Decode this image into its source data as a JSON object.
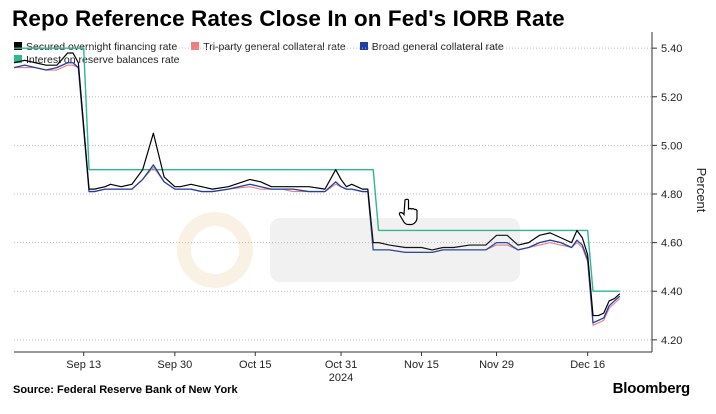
{
  "title": "Repo Reference Rates Close In on Fed's IORB Rate",
  "source": "Source: Federal Reserve Bank of New York",
  "brand": "Bloomberg",
  "colors": {
    "sofr": "#000000",
    "tgcr": "#f07c7c",
    "bgcr": "#1f3fa5",
    "iorb": "#2db890"
  },
  "chart_data": {
    "type": "line",
    "xlabel": "2024",
    "ylabel": "Percent",
    "ylim": [
      4.15,
      5.45
    ],
    "y_ticks": [
      "5.40",
      "5.20",
      "5.00",
      "4.80",
      "4.60",
      "4.40",
      "4.20"
    ],
    "x_ticks": [
      {
        "label": "Sep 13",
        "day": 13
      },
      {
        "label": "Sep 30",
        "day": 30
      },
      {
        "label": "Oct 15",
        "day": 45
      },
      {
        "label": "Oct 31",
        "day": 61
      },
      {
        "label": "Nov 15",
        "day": 76
      },
      {
        "label": "Nov 29",
        "day": 90
      },
      {
        "label": "Dec 16",
        "day": 107
      }
    ],
    "x_range": [
      0,
      119
    ],
    "legend_placement": "top-left",
    "grid": "horizontal",
    "series": [
      {
        "name": "Secured overnight financing rate",
        "key": "sofr",
        "x": [
          0,
          2,
          4,
          6,
          8,
          10,
          11,
          12,
          14,
          15,
          17,
          18,
          20,
          22,
          24,
          26,
          28,
          30,
          31,
          33,
          35,
          37,
          40,
          44,
          46,
          48,
          50,
          52,
          55,
          58,
          60,
          61,
          62,
          63,
          65,
          66,
          67,
          68,
          70,
          73,
          76,
          78,
          80,
          82,
          85,
          88,
          90,
          92,
          94,
          96,
          98,
          100,
          102,
          104,
          105,
          106,
          107,
          108,
          109,
          110,
          111,
          112,
          113
        ],
        "values": [
          5.34,
          5.35,
          5.34,
          5.33,
          5.33,
          5.38,
          5.38,
          5.34,
          4.82,
          4.82,
          4.83,
          4.84,
          4.83,
          4.84,
          4.9,
          5.05,
          4.87,
          4.83,
          4.83,
          4.84,
          4.83,
          4.82,
          4.83,
          4.86,
          4.85,
          4.83,
          4.83,
          4.83,
          4.83,
          4.82,
          4.9,
          4.86,
          4.83,
          4.84,
          4.82,
          4.82,
          4.6,
          4.6,
          4.59,
          4.58,
          4.58,
          4.57,
          4.58,
          4.58,
          4.59,
          4.59,
          4.63,
          4.63,
          4.59,
          4.6,
          4.63,
          4.64,
          4.62,
          4.6,
          4.65,
          4.62,
          4.55,
          4.3,
          4.3,
          4.31,
          4.36,
          4.37,
          4.39
        ]
      },
      {
        "name": "Tri-party general collateral rate",
        "key": "tgcr",
        "x": [
          0,
          2,
          4,
          6,
          8,
          10,
          11,
          12,
          14,
          15,
          17,
          18,
          20,
          22,
          24,
          26,
          28,
          30,
          31,
          33,
          35,
          37,
          40,
          44,
          46,
          48,
          50,
          52,
          55,
          58,
          60,
          61,
          62,
          63,
          65,
          66,
          67,
          68,
          70,
          73,
          76,
          78,
          80,
          82,
          85,
          88,
          90,
          92,
          94,
          96,
          98,
          100,
          102,
          104,
          105,
          106,
          107,
          108,
          109,
          110,
          111,
          112,
          113
        ],
        "values": [
          5.32,
          5.32,
          5.32,
          5.31,
          5.31,
          5.33,
          5.33,
          5.32,
          4.81,
          4.81,
          4.82,
          4.82,
          4.82,
          4.82,
          4.86,
          4.91,
          4.85,
          4.82,
          4.82,
          4.82,
          4.81,
          4.81,
          4.82,
          4.83,
          4.82,
          4.82,
          4.82,
          4.81,
          4.81,
          4.81,
          4.84,
          4.83,
          4.82,
          4.82,
          4.81,
          4.81,
          4.57,
          4.57,
          4.57,
          4.56,
          4.56,
          4.56,
          4.57,
          4.57,
          4.57,
          4.57,
          4.59,
          4.59,
          4.57,
          4.58,
          4.59,
          4.6,
          4.59,
          4.58,
          4.6,
          4.58,
          4.52,
          4.26,
          4.27,
          4.28,
          4.33,
          4.35,
          4.37
        ]
      },
      {
        "name": "Broad general collateral rate",
        "key": "bgcr",
        "x": [
          0,
          2,
          4,
          6,
          8,
          10,
          11,
          12,
          14,
          15,
          17,
          18,
          20,
          22,
          24,
          26,
          28,
          30,
          31,
          33,
          35,
          37,
          40,
          44,
          46,
          48,
          50,
          52,
          55,
          58,
          60,
          61,
          62,
          63,
          65,
          66,
          67,
          68,
          70,
          73,
          76,
          78,
          80,
          82,
          85,
          88,
          90,
          92,
          94,
          96,
          98,
          100,
          102,
          104,
          105,
          106,
          107,
          108,
          109,
          110,
          111,
          112,
          113
        ],
        "values": [
          5.32,
          5.33,
          5.32,
          5.31,
          5.32,
          5.34,
          5.34,
          5.32,
          4.81,
          4.81,
          4.82,
          4.82,
          4.82,
          4.82,
          4.86,
          4.92,
          4.85,
          4.82,
          4.82,
          4.82,
          4.81,
          4.81,
          4.82,
          4.84,
          4.83,
          4.82,
          4.82,
          4.82,
          4.81,
          4.81,
          4.85,
          4.83,
          4.82,
          4.82,
          4.81,
          4.81,
          4.57,
          4.57,
          4.57,
          4.56,
          4.56,
          4.56,
          4.57,
          4.57,
          4.57,
          4.57,
          4.6,
          4.6,
          4.57,
          4.58,
          4.6,
          4.61,
          4.6,
          4.58,
          4.61,
          4.59,
          4.53,
          4.27,
          4.28,
          4.29,
          4.34,
          4.36,
          4.38
        ]
      },
      {
        "name": "Interest on reserve balances rate",
        "key": "iorb",
        "x": [
          0,
          12,
          13,
          14,
          66,
          67,
          68,
          105,
          106,
          107,
          108,
          113
        ],
        "values": [
          5.4,
          5.4,
          5.4,
          4.9,
          4.9,
          4.9,
          4.65,
          4.65,
          4.65,
          4.65,
          4.4,
          4.4
        ]
      }
    ]
  }
}
